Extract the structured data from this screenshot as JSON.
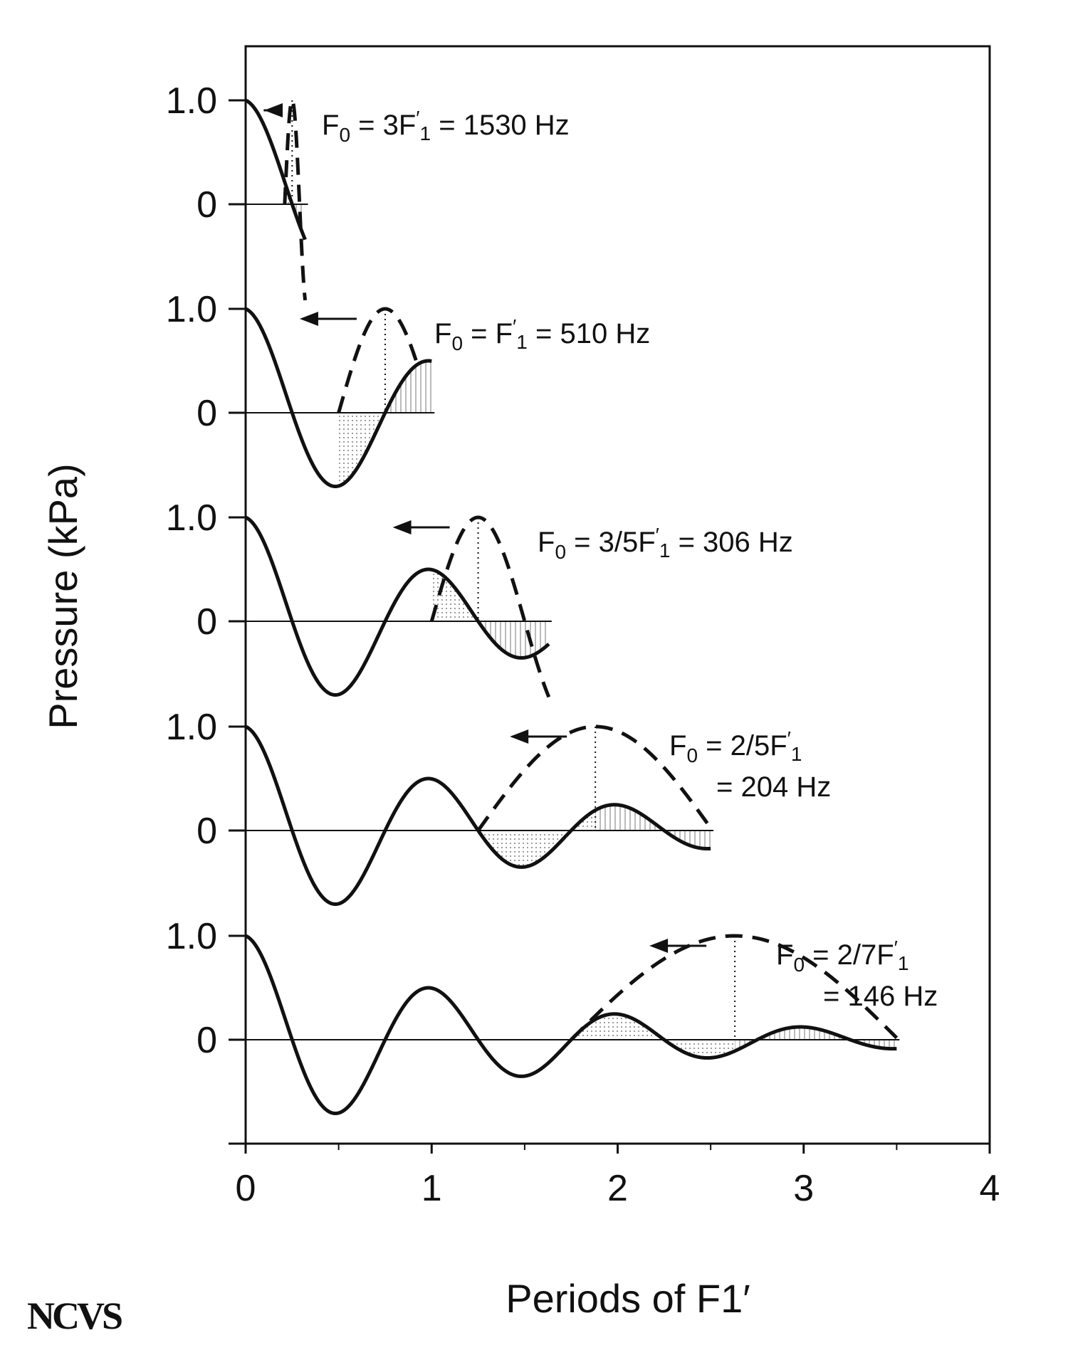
{
  "chart_data": {
    "type": "line",
    "xlabel": "Periods of F1′",
    "ylabel": "Pressure (kPa)",
    "xlim": [
      0,
      4
    ],
    "x_ticks": [
      "0",
      "1",
      "2",
      "3",
      "4"
    ],
    "y_tick_labels": [
      "1.0",
      "0"
    ],
    "grid": false,
    "panels": [
      {
        "label": {
          "pre": "F",
          "sub0": "0",
          "mid": " = 3F",
          "sup": "′",
          "sub1": "1",
          "post": " = 1530 Hz",
          "line2": ""
        },
        "x_end": 0.32,
        "dashed_peak_x": 0.25,
        "dashed_range": [
          0.21,
          0.32
        ]
      },
      {
        "label": {
          "pre": "F",
          "sub0": "0",
          "mid": " = F",
          "sup": "′",
          "sub1": "1",
          "post": " = 510 Hz",
          "line2": ""
        },
        "x_end": 1.0,
        "dashed_peak_x": 0.75,
        "dashed_range": [
          0.5,
          0.92
        ]
      },
      {
        "label": {
          "pre": "F",
          "sub0": "0",
          "mid": " = 3/5F",
          "sup": "′",
          "sub1": "1",
          "post": " = 306 Hz",
          "line2": ""
        },
        "x_end": 1.63,
        "dashed_peak_x": 1.25,
        "dashed_range": [
          1.0,
          1.63
        ]
      },
      {
        "label": {
          "pre": "F",
          "sub0": "0",
          "mid": " = 2/5F",
          "sup": "′",
          "sub1": "1",
          "post": "",
          "line2": "= 204 Hz"
        },
        "x_end": 2.5,
        "dashed_peak_x": 1.88,
        "dashed_range": [
          1.25,
          2.5
        ]
      },
      {
        "label": {
          "pre": "F",
          "sub0": "0",
          "mid": " = 2/7F",
          "sup": "′",
          "sub1": "1",
          "post": "",
          "line2": "= 146 Hz"
        },
        "x_end": 3.5,
        "dashed_peak_x": 2.63,
        "dashed_range": [
          1.75,
          3.5
        ]
      }
    ]
  },
  "logo": {
    "text": "NCVS"
  }
}
